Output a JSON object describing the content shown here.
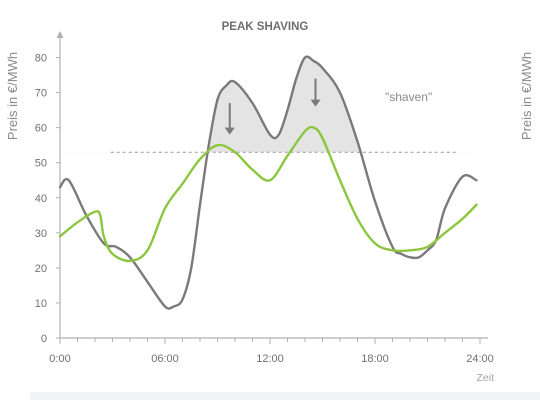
{
  "chart_data": {
    "type": "line",
    "title": "PEAK SHAVING",
    "ylabel_left": "Preis in €/MWh",
    "ylabel_right": "Preis in €/MWh",
    "xlabel": "Zeit",
    "annotation": "\"shaven\"",
    "x_unit": "hours",
    "xlim": [
      0,
      24
    ],
    "ylim": [
      0,
      85
    ],
    "x_tick_labels": [
      {
        "x": 0,
        "label": "0:00"
      },
      {
        "x": 6,
        "label": "06:00"
      },
      {
        "x": 12,
        "label": "12:00"
      },
      {
        "x": 18,
        "label": "18:00"
      },
      {
        "x": 24,
        "label": "24:00"
      }
    ],
    "y_ticks": [
      0,
      10,
      20,
      30,
      40,
      50,
      60,
      70,
      80
    ],
    "threshold": 53,
    "series": [
      {
        "color": "#7a7a7a",
        "x": [
          0,
          0.5,
          1.5,
          2.5,
          3.2,
          4,
          5,
          6,
          6.5,
          7,
          7.5,
          8,
          8.5,
          9,
          9.5,
          10,
          11,
          12,
          12.5,
          13,
          13.5,
          14,
          14.5,
          15,
          16,
          17,
          18,
          19,
          19.5,
          20,
          20.5,
          21,
          21.5,
          22,
          23,
          23.8
        ],
        "values": [
          43,
          45,
          35,
          27,
          26,
          23,
          16,
          9,
          9,
          11,
          20,
          38,
          55,
          68,
          72,
          73,
          67,
          58,
          58,
          65,
          74,
          80,
          79,
          77,
          70,
          56,
          39,
          26,
          24,
          23,
          23,
          25,
          28,
          37,
          46,
          45
        ]
      },
      {
        "color": "#8cc63f",
        "x": [
          0,
          1,
          2,
          2.3,
          2.5,
          3,
          4,
          5,
          6,
          7,
          8,
          9,
          10,
          11,
          12,
          13,
          14,
          14.5,
          15,
          16,
          17,
          18,
          19,
          20,
          21,
          22,
          23,
          23.8
        ],
        "values": [
          29,
          33,
          36,
          35,
          29,
          24,
          22,
          25,
          37,
          44,
          51,
          55,
          53,
          48,
          45,
          52,
          59,
          60,
          57,
          45,
          34,
          27,
          25,
          25,
          26,
          30,
          34,
          38
        ]
      }
    ],
    "arrows_down": [
      {
        "x": 9.7,
        "from": 67,
        "to": 58
      },
      {
        "x": 14.6,
        "from": 74,
        "to": 66
      }
    ],
    "colors": {
      "axis": "#b0b0b0",
      "tick_text": "#707070",
      "threshold_line": "#9a9a9a",
      "shaded_area": "#e4e4e4",
      "arrow": "#7a7a7a"
    }
  }
}
